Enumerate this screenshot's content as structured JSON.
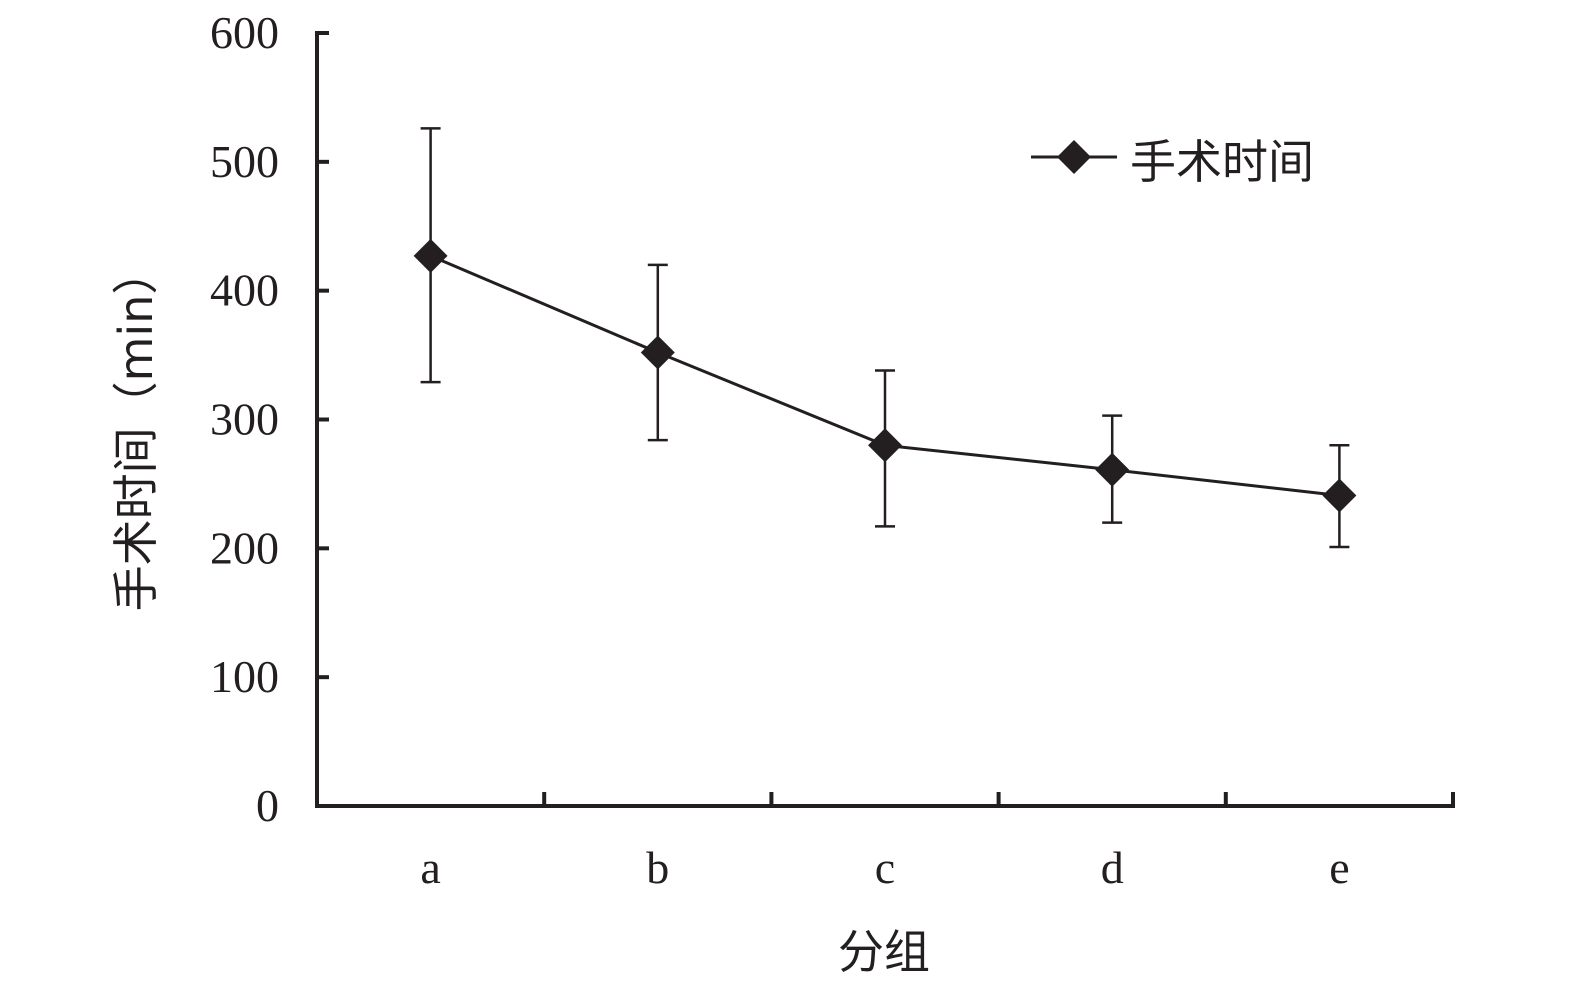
{
  "chart_data": {
    "type": "line",
    "title": "",
    "xlabel": "分组",
    "ylabel": "手术时间（min）",
    "categories": [
      "a",
      "b",
      "c",
      "d",
      "e"
    ],
    "series": [
      {
        "name": "手术时间",
        "values": [
          427,
          352,
          280,
          261,
          241
        ],
        "error_low": [
          329,
          284,
          217,
          220,
          201
        ],
        "error_high": [
          526,
          420,
          338,
          303,
          280
        ],
        "marker": "diamond",
        "color": "#231f20"
      }
    ],
    "ylim": [
      0,
      600
    ],
    "yticks": [
      0,
      100,
      200,
      300,
      400,
      500,
      600
    ],
    "grid": false,
    "legend_position": "top-right"
  }
}
